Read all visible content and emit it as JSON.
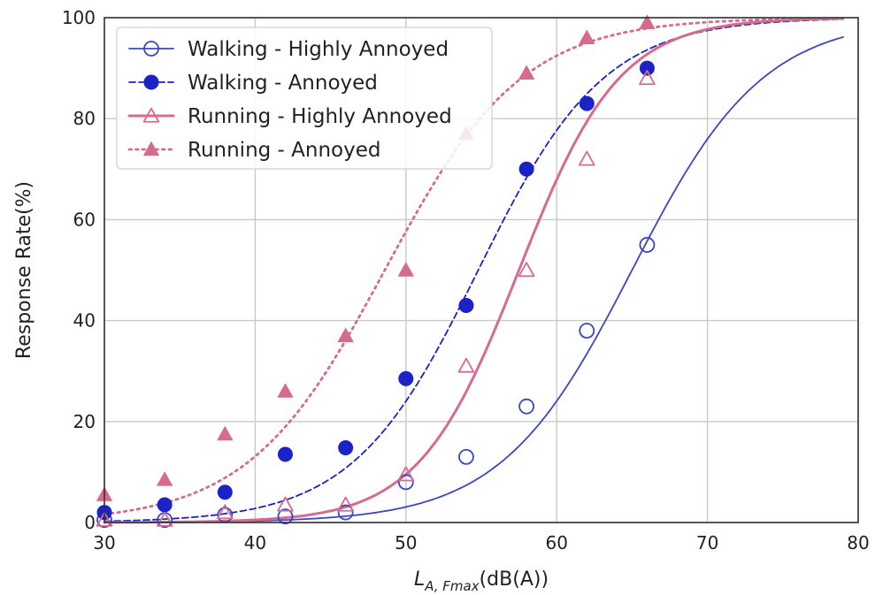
{
  "chart_data": {
    "type": "scatter",
    "title": "",
    "xlabel": "dB(A)",
    "xlabel_math": {
      "base": "L",
      "subscript": "A, Fmax",
      "suffix": "(dB(A))"
    },
    "ylabel": "Response Rate(%)",
    "xlim": [
      30,
      80
    ],
    "ylim": [
      0,
      100
    ],
    "xticks": [
      30,
      40,
      50,
      60,
      70,
      80
    ],
    "yticks": [
      0,
      20,
      40,
      60,
      80,
      100
    ],
    "grid": true,
    "legend_position": "top-left",
    "series": [
      {
        "name": "Walking - Highly Annoyed",
        "color": "#3a46c2",
        "marker": "open-circle",
        "line": "solid",
        "points": [
          [
            30,
            0.5
          ],
          [
            34,
            0.5
          ],
          [
            38,
            1.5
          ],
          [
            42,
            1.2
          ],
          [
            46,
            2
          ],
          [
            50,
            8
          ],
          [
            54,
            13
          ],
          [
            58,
            23
          ],
          [
            62,
            38
          ],
          [
            66,
            55
          ]
        ],
        "fit": {
          "midpoint": 65,
          "slope": 0.23
        }
      },
      {
        "name": "Walking - Annoyed",
        "color": "#1a22c8",
        "marker": "filled-circle",
        "line": "dashed",
        "points": [
          [
            30,
            2
          ],
          [
            34,
            3.5
          ],
          [
            38,
            6
          ],
          [
            42,
            13.5
          ],
          [
            46,
            14.8
          ],
          [
            50,
            28.5
          ],
          [
            54,
            43
          ],
          [
            58,
            70
          ],
          [
            62,
            83
          ],
          [
            66,
            90
          ]
        ],
        "fit": {
          "midpoint": 54.8,
          "slope": 0.24
        }
      },
      {
        "name": "Running - Highly Annoyed",
        "color": "#d66b8f",
        "marker": "open-triangle",
        "line": "solid",
        "points": [
          [
            30,
            0.5
          ],
          [
            34,
            0.5
          ],
          [
            38,
            2
          ],
          [
            42,
            3.5
          ],
          [
            46,
            3.5
          ],
          [
            50,
            9.5
          ],
          [
            54,
            31
          ],
          [
            58,
            50
          ],
          [
            62,
            72
          ],
          [
            66,
            88
          ]
        ],
        "fit": {
          "midpoint": 57.5,
          "slope": 0.3
        }
      },
      {
        "name": "Running - Annoyed",
        "color": "#d66b8f",
        "marker": "filled-triangle",
        "line": "dotted",
        "points": [
          [
            30,
            5.5
          ],
          [
            34,
            8.5
          ],
          [
            38,
            17.5
          ],
          [
            42,
            26
          ],
          [
            46,
            37
          ],
          [
            50,
            50
          ],
          [
            54,
            77
          ],
          [
            58,
            89
          ],
          [
            62,
            96
          ],
          [
            66,
            99
          ]
        ],
        "fit": {
          "midpoint": 48.6,
          "slope": 0.22
        }
      }
    ]
  }
}
